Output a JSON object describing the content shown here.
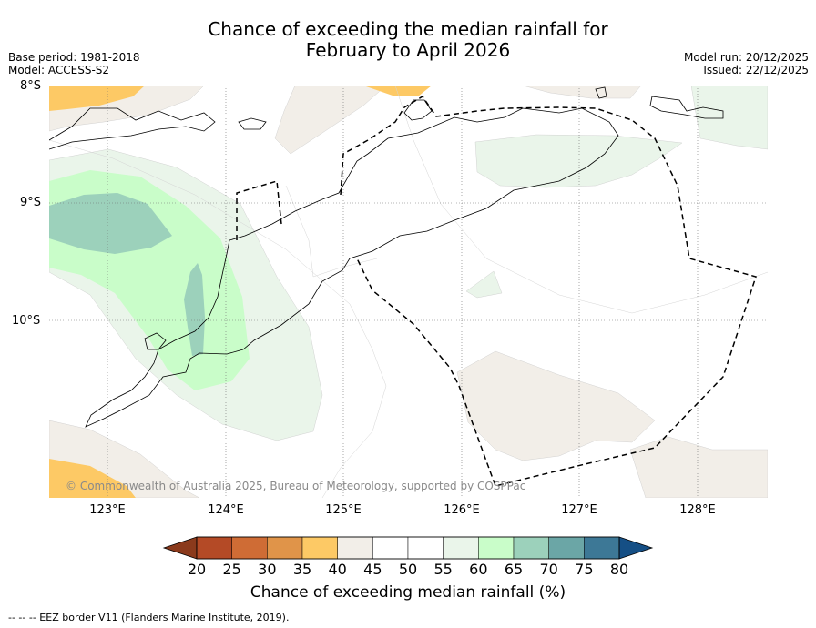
{
  "title": {
    "line1": "Chance of exceeding the median rainfall for",
    "line2": "February to April 2026"
  },
  "meta": {
    "base_period": "Base period: 1981-2018",
    "model": "Model: ACCESS-S2",
    "model_run": "Model run: 20/12/2025",
    "issued": "Issued: 22/12/2025"
  },
  "axes": {
    "lat_labels": [
      "8°S",
      "9°S",
      "10°S"
    ],
    "lon_labels": [
      "123°E",
      "124°E",
      "125°E",
      "126°E",
      "127°E",
      "128°E"
    ]
  },
  "copyright": "© Commonwealth of Australia 2025, Bureau of Meteorology, supported by COSPPac",
  "colorbar": {
    "ticks": [
      "20",
      "25",
      "30",
      "35",
      "40",
      "45",
      "50",
      "55",
      "60",
      "65",
      "70",
      "75",
      "80"
    ],
    "label": "Chance of exceeding median rainfall (%)",
    "colors": [
      "#8b3a1c",
      "#b44a26",
      "#cf6c35",
      "#e09449",
      "#fdc965",
      "#f2eee8",
      "#ffffff",
      "#ffffff",
      "#eaf5ea",
      "#c9fdc9",
      "#9cd1bb",
      "#6ba6a6",
      "#3d7896",
      "#154f85"
    ]
  },
  "footer": "--  --  -- EEZ border V11 (Flanders Marine Institute, 2019)."
}
